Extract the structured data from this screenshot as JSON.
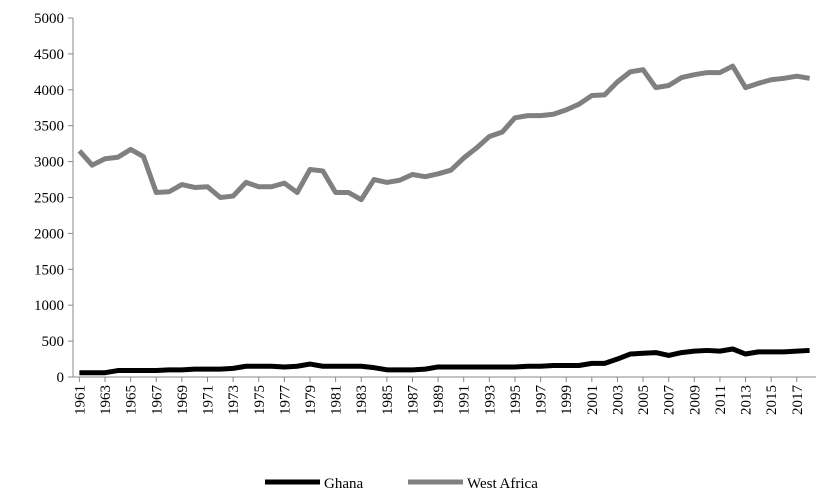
{
  "chart_data": {
    "type": "line",
    "x": [
      1961,
      1962,
      1963,
      1964,
      1965,
      1966,
      1967,
      1968,
      1969,
      1970,
      1971,
      1972,
      1973,
      1974,
      1975,
      1976,
      1977,
      1978,
      1979,
      1980,
      1981,
      1982,
      1983,
      1984,
      1985,
      1986,
      1987,
      1988,
      1989,
      1990,
      1991,
      1992,
      1993,
      1994,
      1995,
      1996,
      1997,
      1998,
      1999,
      2000,
      2001,
      2002,
      2003,
      2004,
      2005,
      2006,
      2007,
      2008,
      2009,
      2010,
      2011,
      2012,
      2013,
      2014,
      2015,
      2016,
      2017,
      2018
    ],
    "series": [
      {
        "name": "Ghana",
        "color": "#000000",
        "values": [
          60,
          60,
          60,
          90,
          90,
          90,
          90,
          100,
          100,
          110,
          110,
          110,
          120,
          150,
          150,
          150,
          140,
          150,
          180,
          150,
          150,
          150,
          150,
          130,
          100,
          100,
          100,
          110,
          140,
          140,
          140,
          140,
          140,
          140,
          140,
          150,
          150,
          160,
          160,
          160,
          190,
          190,
          250,
          320,
          330,
          340,
          300,
          340,
          360,
          370,
          360,
          390,
          320,
          350,
          350,
          350,
          360,
          370
        ]
      },
      {
        "name": "West Africa",
        "color": "#808080",
        "values": [
          3150,
          2950,
          3040,
          3060,
          3170,
          3070,
          2570,
          2580,
          2680,
          2640,
          2650,
          2500,
          2520,
          2710,
          2650,
          2650,
          2700,
          2570,
          2890,
          2870,
          2570,
          2570,
          2470,
          2750,
          2710,
          2740,
          2820,
          2790,
          2830,
          2880,
          3050,
          3190,
          3350,
          3410,
          3610,
          3640,
          3640,
          3660,
          3720,
          3800,
          3920,
          3930,
          4110,
          4250,
          4280,
          4030,
          4060,
          4170,
          4210,
          4240,
          4240,
          4330,
          4030,
          4090,
          4140,
          4160,
          4190,
          4160
        ]
      }
    ],
    "xlim": [
      1960.5,
      2018.5
    ],
    "xticks": [
      1961,
      1963,
      1965,
      1967,
      1969,
      1971,
      1973,
      1975,
      1977,
      1979,
      1981,
      1983,
      1985,
      1987,
      1989,
      1991,
      1993,
      1995,
      1997,
      1999,
      2001,
      2003,
      2005,
      2007,
      2009,
      2011,
      2013,
      2015,
      2017
    ],
    "ylim": [
      0,
      5000
    ],
    "yticks": [
      0,
      500,
      1000,
      1500,
      2000,
      2500,
      3000,
      3500,
      4000,
      4500,
      5000
    ],
    "legend": "bottom"
  }
}
